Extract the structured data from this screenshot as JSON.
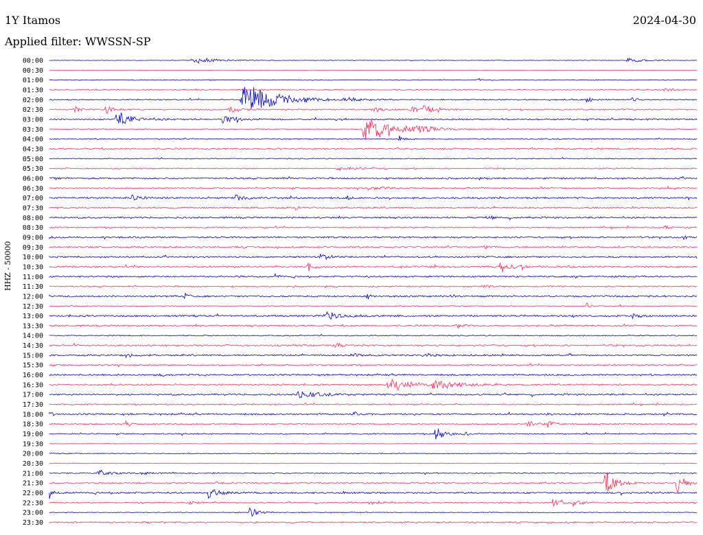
{
  "header": {
    "station": "1Y Itamos",
    "filter": "Applied filter: WWSSN-SP",
    "date": "2024-04-30"
  },
  "chart_data": {
    "type": "line",
    "title": "1Y Itamos",
    "subtitle": "Applied filter: WWSSN-SP",
    "date": "2024-04-30",
    "ylabel": "HHZ - 50000",
    "xlabel": "",
    "colors": {
      "even": "#0000cc",
      "odd": "#ff2a55"
    },
    "traces": [
      {
        "time": "00:00",
        "color": "blue",
        "noise": 0.3,
        "events": [
          [
            0.23,
            7,
            1.0
          ],
          [
            0.9,
            5,
            0.8
          ]
        ]
      },
      {
        "time": "00:30",
        "color": "red",
        "noise": 0.2,
        "events": []
      },
      {
        "time": "01:00",
        "color": "blue",
        "noise": 0.4,
        "events": [
          [
            0.66,
            1,
            1.5
          ]
        ]
      },
      {
        "time": "01:30",
        "color": "red",
        "noise": 0.6,
        "events": [
          [
            0.95,
            3,
            0.6
          ]
        ]
      },
      {
        "time": "02:00",
        "color": "blue",
        "noise": 0.7,
        "events": [
          [
            0.31,
            9,
            6.0
          ],
          [
            0.46,
            4,
            0.7
          ],
          [
            0.83,
            2,
            1.0
          ],
          [
            0.9,
            1,
            1.0
          ]
        ]
      },
      {
        "time": "02:30",
        "color": "red",
        "noise": 0.8,
        "events": [
          [
            0.04,
            2,
            1.3
          ],
          [
            0.09,
            2,
            1.5
          ],
          [
            0.28,
            3,
            1.2
          ],
          [
            0.5,
            3,
            1.2
          ],
          [
            0.56,
            3,
            1.1
          ],
          [
            0.58,
            2,
            1.4
          ],
          [
            0.6,
            1,
            1.2
          ]
        ]
      },
      {
        "time": "03:00",
        "color": "blue",
        "noise": 0.9,
        "events": [
          [
            0.11,
            5,
            2.5
          ],
          [
            0.27,
            2,
            2.0
          ],
          [
            0.29,
            1,
            1.2
          ]
        ]
      },
      {
        "time": "03:30",
        "color": "red",
        "noise": 0.5,
        "events": [
          [
            0.5,
            10,
            4.0
          ],
          [
            0.57,
            2,
            1.5
          ]
        ]
      },
      {
        "time": "04:00",
        "color": "blue",
        "noise": 0.7,
        "events": [
          [
            0.54,
            1,
            1.5
          ]
        ]
      },
      {
        "time": "04:30",
        "color": "red",
        "noise": 1.0,
        "events": []
      },
      {
        "time": "05:00",
        "color": "blue",
        "noise": 0.6,
        "events": []
      },
      {
        "time": "05:30",
        "color": "red",
        "noise": 0.7,
        "events": [
          [
            0.45,
            6,
            0.6
          ]
        ]
      },
      {
        "time": "06:00",
        "color": "blue",
        "noise": 1.0,
        "events": []
      },
      {
        "time": "06:30",
        "color": "red",
        "noise": 0.8,
        "events": [
          [
            0.5,
            7,
            0.7
          ]
        ]
      },
      {
        "time": "07:00",
        "color": "blue",
        "noise": 1.0,
        "events": [
          [
            0.13,
            2,
            1.5
          ],
          [
            0.29,
            2,
            1.4
          ],
          [
            0.46,
            1,
            1.1
          ]
        ]
      },
      {
        "time": "07:30",
        "color": "red",
        "noise": 1.0,
        "events": [
          [
            0.38,
            1,
            0.8
          ]
        ]
      },
      {
        "time": "08:00",
        "color": "blue",
        "noise": 1.0,
        "events": [
          [
            0.68,
            1,
            1.0
          ]
        ]
      },
      {
        "time": "08:30",
        "color": "red",
        "noise": 0.8,
        "events": [
          [
            0.95,
            3,
            0.6
          ]
        ]
      },
      {
        "time": "09:00",
        "color": "blue",
        "noise": 1.0,
        "events": [
          [
            0.0,
            1,
            1.0
          ],
          [
            0.98,
            1,
            1.0
          ]
        ]
      },
      {
        "time": "09:30",
        "color": "red",
        "noise": 1.0,
        "events": [
          [
            0.67,
            2,
            0.8
          ]
        ]
      },
      {
        "time": "10:00",
        "color": "blue",
        "noise": 1.0,
        "events": [
          [
            0.42,
            2,
            1.5
          ]
        ]
      },
      {
        "time": "10:30",
        "color": "red",
        "noise": 1.0,
        "events": [
          [
            0.4,
            2,
            2.0
          ],
          [
            0.7,
            3,
            1.8
          ],
          [
            0.73,
            1,
            1.2
          ],
          [
            0.8,
            1,
            1.1
          ]
        ]
      },
      {
        "time": "11:00",
        "color": "blue",
        "noise": 1.0,
        "events": [
          [
            0.35,
            1,
            1.2
          ]
        ]
      },
      {
        "time": "11:30",
        "color": "red",
        "noise": 0.8,
        "events": [
          [
            0.67,
            2,
            0.8
          ]
        ]
      },
      {
        "time": "12:00",
        "color": "blue",
        "noise": 1.0,
        "events": [
          [
            0.21,
            1,
            1.2
          ],
          [
            0.49,
            1,
            2.0
          ],
          [
            0.62,
            1,
            1.2
          ]
        ]
      },
      {
        "time": "12:30",
        "color": "red",
        "noise": 0.5,
        "events": [
          [
            0.83,
            1,
            1.0
          ],
          [
            0.88,
            1,
            0.8
          ]
        ]
      },
      {
        "time": "13:00",
        "color": "blue",
        "noise": 1.1,
        "events": [
          [
            0.43,
            4,
            1.4
          ],
          [
            0.78,
            1,
            1.2
          ],
          [
            0.9,
            2,
            1.2
          ]
        ]
      },
      {
        "time": "13:30",
        "color": "red",
        "noise": 1.0,
        "events": [
          [
            0.63,
            2,
            1.0
          ]
        ]
      },
      {
        "time": "14:00",
        "color": "blue",
        "noise": 0.7,
        "events": []
      },
      {
        "time": "14:30",
        "color": "red",
        "noise": 1.0,
        "events": [
          [
            0.44,
            2,
            1.1
          ]
        ]
      },
      {
        "time": "15:00",
        "color": "blue",
        "noise": 1.0,
        "events": [
          [
            0.12,
            2,
            0.9
          ],
          [
            0.47,
            3,
            0.7
          ],
          [
            0.58,
            3,
            0.8
          ]
        ]
      },
      {
        "time": "15:30",
        "color": "red",
        "noise": 0.8,
        "events": []
      },
      {
        "time": "16:00",
        "color": "blue",
        "noise": 1.0,
        "events": [
          [
            0.17,
            1,
            1.0
          ]
        ]
      },
      {
        "time": "16:30",
        "color": "red",
        "noise": 1.0,
        "events": [
          [
            0.53,
            5,
            2.5
          ],
          [
            0.6,
            6,
            2.5
          ]
        ]
      },
      {
        "time": "17:00",
        "color": "blue",
        "noise": 1.0,
        "events": [
          [
            0.39,
            5,
            1.5
          ]
        ]
      },
      {
        "time": "17:30",
        "color": "red",
        "noise": 0.8,
        "events": []
      },
      {
        "time": "18:00",
        "color": "blue",
        "noise": 1.0,
        "events": [
          [
            0.0,
            1,
            1.0
          ],
          [
            0.47,
            1,
            1.1
          ],
          [
            0.95,
            1,
            1.0
          ]
        ]
      },
      {
        "time": "18:30",
        "color": "red",
        "noise": 0.8,
        "events": [
          [
            0.12,
            1,
            1.5
          ],
          [
            0.74,
            3,
            1.0
          ],
          [
            0.77,
            2,
            1.0
          ]
        ]
      },
      {
        "time": "19:00",
        "color": "blue",
        "noise": 0.7,
        "events": [
          [
            0.6,
            3,
            2.2
          ],
          [
            0.64,
            1,
            1.5
          ]
        ]
      },
      {
        "time": "19:30",
        "color": "red",
        "noise": 0.3,
        "events": []
      },
      {
        "time": "20:00",
        "color": "blue",
        "noise": 0.5,
        "events": []
      },
      {
        "time": "20:30",
        "color": "red",
        "noise": 0.4,
        "events": []
      },
      {
        "time": "21:00",
        "color": "blue",
        "noise": 0.6,
        "events": [
          [
            0.08,
            4,
            1.0
          ],
          [
            0.15,
            2,
            0.7
          ]
        ]
      },
      {
        "time": "21:30",
        "color": "red",
        "noise": 0.8,
        "events": [
          [
            0.86,
            3,
            4.5
          ],
          [
            0.97,
            2,
            4.0
          ]
        ]
      },
      {
        "time": "22:00",
        "color": "blue",
        "noise": 1.0,
        "events": [
          [
            0.0,
            2,
            2.0
          ],
          [
            0.25,
            3,
            2.2
          ]
        ]
      },
      {
        "time": "22:30",
        "color": "red",
        "noise": 0.7,
        "events": [
          [
            0.22,
            3,
            0.6
          ],
          [
            0.5,
            4,
            0.6
          ],
          [
            0.78,
            2,
            2.5
          ],
          [
            0.81,
            2,
            1.2
          ]
        ]
      },
      {
        "time": "23:00",
        "color": "blue",
        "noise": 0.5,
        "events": [
          [
            0.31,
            2,
            2.5
          ]
        ]
      },
      {
        "time": "23:30",
        "color": "red",
        "noise": 0.9,
        "events": []
      }
    ]
  }
}
